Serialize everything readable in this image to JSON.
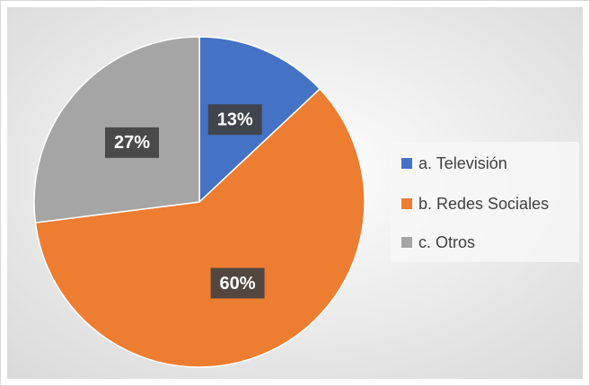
{
  "chart_data": {
    "type": "pie",
    "categories": [
      "a.  Televisión",
      "b.  Redes Sociales",
      "c.  Otros"
    ],
    "values": [
      13,
      60,
      27
    ],
    "value_labels": [
      "13%",
      "60%",
      "27%"
    ],
    "colors": [
      "#4472c4",
      "#ed7d31",
      "#a5a5a5"
    ],
    "legend": "right"
  }
}
